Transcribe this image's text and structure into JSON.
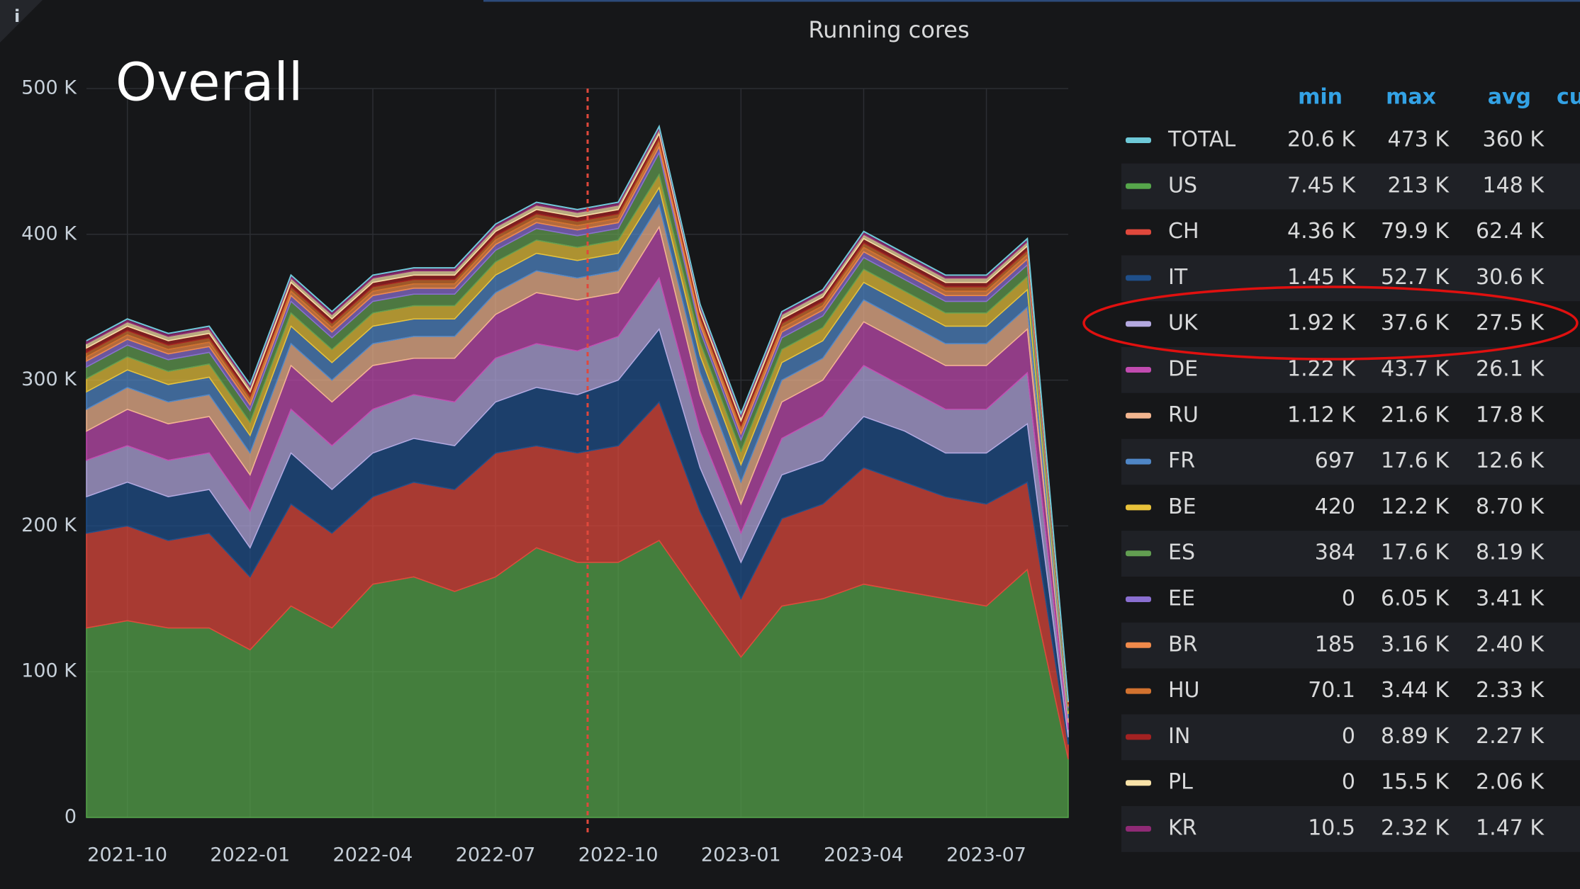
{
  "chart_data": {
    "type": "stacked_area",
    "title": "Running cores",
    "annotation": "Overall",
    "legend_headers": [
      "min",
      "max",
      "avg",
      "cu"
    ],
    "x": [
      "2021-09",
      "2021-10",
      "2021-11",
      "2021-12",
      "2022-01",
      "2022-02",
      "2022-03",
      "2022-04",
      "2022-05",
      "2022-06",
      "2022-07",
      "2022-08",
      "2022-09",
      "2022-10",
      "2022-11",
      "2022-12",
      "2023-01",
      "2023-02",
      "2023-03",
      "2023-04",
      "2023-05",
      "2023-06",
      "2023-07",
      "2023-08",
      "2023-09"
    ],
    "xlim": [
      "2021-09",
      "2023-09"
    ],
    "xticks": [
      "2021-10",
      "2022-01",
      "2022-04",
      "2022-07",
      "2022-10",
      "2023-01",
      "2023-04",
      "2023-07"
    ],
    "ylim": [
      0,
      500000
    ],
    "yticks": [
      0,
      {
        "value": 100000,
        "label": "100 K"
      },
      {
        "value": 200000,
        "label": "200 K"
      },
      {
        "value": 300000,
        "label": "300 K"
      },
      {
        "value": 400000,
        "label": "400 K"
      },
      {
        "value": 500000,
        "label": "500 K"
      }
    ],
    "grid": true,
    "total": {
      "name": "TOTAL",
      "color": "#6ec9d8",
      "min": "20.6 K",
      "max": "473 K",
      "avg": "360 K",
      "values": [
        327000,
        342000,
        332000,
        337000,
        297000,
        372000,
        347000,
        372000,
        377000,
        377000,
        407000,
        422000,
        417000,
        422000,
        474000,
        352000,
        277000,
        347000,
        362000,
        402000,
        387000,
        372000,
        372000,
        397000,
        80000
      ]
    },
    "series": [
      {
        "name": "US",
        "color": "#56a64b",
        "min": "7.45 K",
        "max": "213 K",
        "avg": "148 K",
        "values": [
          130000,
          135000,
          130000,
          130000,
          115000,
          145000,
          130000,
          160000,
          165000,
          155000,
          165000,
          185000,
          175000,
          175000,
          190000,
          150000,
          110000,
          145000,
          150000,
          160000,
          155000,
          150000,
          145000,
          170000,
          40000
        ]
      },
      {
        "name": "CH",
        "color": "#e0483c",
        "min": "4.36 K",
        "max": "79.9 K",
        "avg": "62.4 K",
        "values": [
          65000,
          65000,
          60000,
          65000,
          50000,
          70000,
          65000,
          60000,
          65000,
          70000,
          85000,
          70000,
          75000,
          80000,
          95000,
          60000,
          40000,
          60000,
          65000,
          80000,
          75000,
          70000,
          70000,
          60000,
          10000
        ]
      },
      {
        "name": "IT",
        "color": "#1f4f8a",
        "min": "1.45 K",
        "max": "52.7 K",
        "avg": "30.6 K",
        "values": [
          25000,
          30000,
          30000,
          30000,
          20000,
          35000,
          30000,
          30000,
          30000,
          30000,
          35000,
          40000,
          40000,
          45000,
          50000,
          30000,
          25000,
          30000,
          30000,
          35000,
          35000,
          30000,
          35000,
          40000,
          5000
        ]
      },
      {
        "name": "UK",
        "color": "#b4a9e0",
        "min": "1.92 K",
        "max": "37.6 K",
        "avg": "27.5 K",
        "values": [
          25000,
          25000,
          25000,
          25000,
          25000,
          30000,
          30000,
          30000,
          30000,
          30000,
          30000,
          30000,
          30000,
          30000,
          35000,
          25000,
          20000,
          25000,
          30000,
          35000,
          30000,
          30000,
          30000,
          35000,
          5000
        ]
      },
      {
        "name": "DE",
        "color": "#c14bb0",
        "min": "1.22 K",
        "max": "43.7 K",
        "avg": "26.1 K",
        "values": [
          20000,
          25000,
          25000,
          25000,
          25000,
          30000,
          30000,
          30000,
          25000,
          30000,
          30000,
          35000,
          35000,
          30000,
          35000,
          25000,
          20000,
          25000,
          25000,
          30000,
          30000,
          30000,
          30000,
          30000,
          5000
        ]
      },
      {
        "name": "RU",
        "color": "#f2b58f",
        "min": "1.12 K",
        "max": "21.6 K",
        "avg": "17.8 K",
        "values": [
          15000,
          15000,
          15000,
          15000,
          15000,
          15000,
          15000,
          15000,
          15000,
          15000,
          15000,
          15000,
          15000,
          15000,
          15000,
          15000,
          15000,
          15000,
          15000,
          15000,
          15000,
          15000,
          15000,
          15000,
          3000
        ]
      },
      {
        "name": "FR",
        "color": "#4f86c6",
        "min": "697",
        "max": "17.6 K",
        "avg": "12.6 K",
        "values": [
          12000,
          12000,
          12000,
          12000,
          12000,
          12000,
          12000,
          12000,
          12000,
          12000,
          12000,
          12000,
          12000,
          12000,
          12000,
          12000,
          12000,
          12000,
          12000,
          12000,
          12000,
          12000,
          12000,
          12000,
          3000
        ]
      },
      {
        "name": "BE",
        "color": "#e8c23a",
        "min": "420",
        "max": "12.2 K",
        "avg": "8.70 K",
        "values": [
          9000,
          9000,
          9000,
          9000,
          9000,
          9000,
          9000,
          9000,
          9000,
          9000,
          9000,
          9000,
          9000,
          9000,
          9000,
          9000,
          9000,
          9000,
          9000,
          9000,
          9000,
          9000,
          9000,
          9000,
          2000
        ]
      },
      {
        "name": "ES",
        "color": "#629e51",
        "min": "384",
        "max": "17.6 K",
        "avg": "8.19 K",
        "values": [
          8000,
          8000,
          8000,
          8000,
          8000,
          8000,
          8000,
          8000,
          8000,
          8000,
          8000,
          8000,
          8000,
          8000,
          15000,
          8000,
          8000,
          8000,
          8000,
          8000,
          8000,
          8000,
          8000,
          8000,
          2000
        ]
      },
      {
        "name": "EE",
        "color": "#8a6fd1",
        "min": "0",
        "max": "6.05 K",
        "avg": "3.41 K",
        "values": [
          4000,
          4000,
          4000,
          4000,
          4000,
          4000,
          4000,
          4000,
          4000,
          4000,
          4000,
          4000,
          4000,
          4000,
          4000,
          4000,
          4000,
          4000,
          4000,
          4000,
          4000,
          4000,
          4000,
          4000,
          1000
        ]
      },
      {
        "name": "BR",
        "color": "#f08a4b",
        "min": "185",
        "max": "3.16 K",
        "avg": "2.40 K",
        "values": [
          3000,
          3000,
          3000,
          3000,
          3000,
          3000,
          3000,
          3000,
          3000,
          3000,
          3000,
          3000,
          3000,
          3000,
          3000,
          3000,
          3000,
          3000,
          3000,
          3000,
          3000,
          3000,
          3000,
          3000,
          1000
        ]
      },
      {
        "name": "HU",
        "color": "#d2722f",
        "min": "70.1",
        "max": "3.44 K",
        "avg": "2.33 K",
        "values": [
          3000,
          3000,
          3000,
          3000,
          3000,
          3000,
          3000,
          3000,
          3000,
          3000,
          3000,
          3000,
          3000,
          3000,
          3000,
          3000,
          3000,
          3000,
          3000,
          3000,
          3000,
          3000,
          3000,
          3000,
          1000
        ]
      },
      {
        "name": "IN",
        "color": "#a32222",
        "min": "0",
        "max": "8.89 K",
        "avg": "2.27 K",
        "values": [
          3000,
          3000,
          3000,
          3000,
          3000,
          3000,
          3000,
          3000,
          3000,
          3000,
          3000,
          3000,
          3000,
          3000,
          3000,
          3000,
          3000,
          3000,
          3000,
          3000,
          3000,
          3000,
          3000,
          3000,
          1000
        ]
      },
      {
        "name": "PL",
        "color": "#f9e2a8",
        "min": "0",
        "max": "15.5 K",
        "avg": "2.06 K",
        "values": [
          3000,
          3000,
          3000,
          3000,
          3000,
          3000,
          3000,
          3000,
          3000,
          3000,
          3000,
          3000,
          3000,
          3000,
          3000,
          3000,
          3000,
          3000,
          3000,
          3000,
          3000,
          3000,
          3000,
          3000,
          1000
        ]
      },
      {
        "name": "KR",
        "color": "#8f2a75",
        "min": "10.5",
        "max": "2.32 K",
        "avg": "1.47 K",
        "values": [
          2000,
          2000,
          2000,
          2000,
          2000,
          2000,
          2000,
          2000,
          2000,
          2000,
          2000,
          2000,
          2000,
          2000,
          2000,
          2000,
          2000,
          2000,
          2000,
          2000,
          2000,
          2000,
          2000,
          2000,
          0
        ]
      }
    ]
  }
}
